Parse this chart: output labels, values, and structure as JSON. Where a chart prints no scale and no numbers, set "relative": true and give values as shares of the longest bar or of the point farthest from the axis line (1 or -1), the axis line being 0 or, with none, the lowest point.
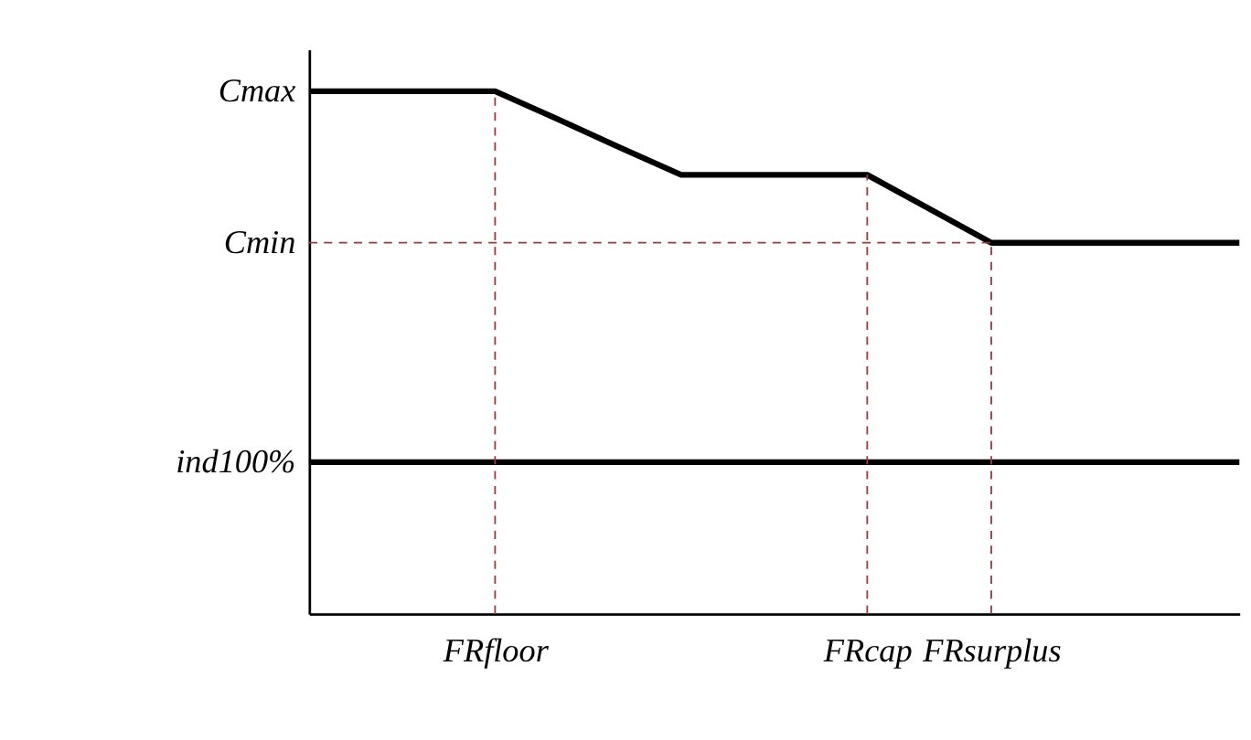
{
  "chart_data": {
    "type": "line",
    "relative": true,
    "categories": [
      null,
      null,
      null,
      "FRfloor",
      null,
      null,
      null,
      null,
      null,
      "FRcap",
      null,
      "FRsurplus",
      null,
      null,
      null,
      null
    ],
    "grid": false,
    "line_style": "solid",
    "annotations": [
      "Cmax"
    ],
    "series": [
      {
        "color": "#000000",
        "values": [
          1,
          1,
          1,
          1,
          0.947,
          0.893,
          0.84,
          0.84,
          0.84,
          0.84,
          0.775,
          0.71,
          0.71,
          0.71,
          0.71,
          0.71
        ]
      },
      {
        "name": "ind100%",
        "color": "#000000",
        "values": [
          0.29,
          0.29,
          0.29,
          0.29,
          0.29,
          0.29,
          0.29,
          0.29,
          0.29,
          0.29,
          0.29,
          0.29,
          0.29,
          0.29,
          0.29,
          0.29
        ]
      },
      {
        "name": "Cmin",
        "color": "#9b3b3b",
        "line_style": "dashed",
        "values": [
          0.71,
          0.71,
          0.71,
          0.71,
          0.71,
          0.71,
          0.71,
          0.71,
          0.71,
          0.71,
          0.71,
          0.71,
          null,
          null,
          null,
          null
        ]
      },
      {
        "color": "#9b3b3b",
        "line_style": "dashed",
        "x": [
          "FRfloor",
          "FRfloor"
        ],
        "values": [
          0,
          1
        ]
      },
      {
        "color": "#9b3b3b",
        "line_style": "dashed",
        "x": [
          "FRcap",
          "FRcap"
        ],
        "values": [
          0,
          0.84
        ]
      },
      {
        "color": "#9b3b3b",
        "line_style": "dashed",
        "x": [
          "FRsurplus",
          "FRsurplus"
        ],
        "values": [
          0,
          0.71
        ]
      }
    ]
  }
}
